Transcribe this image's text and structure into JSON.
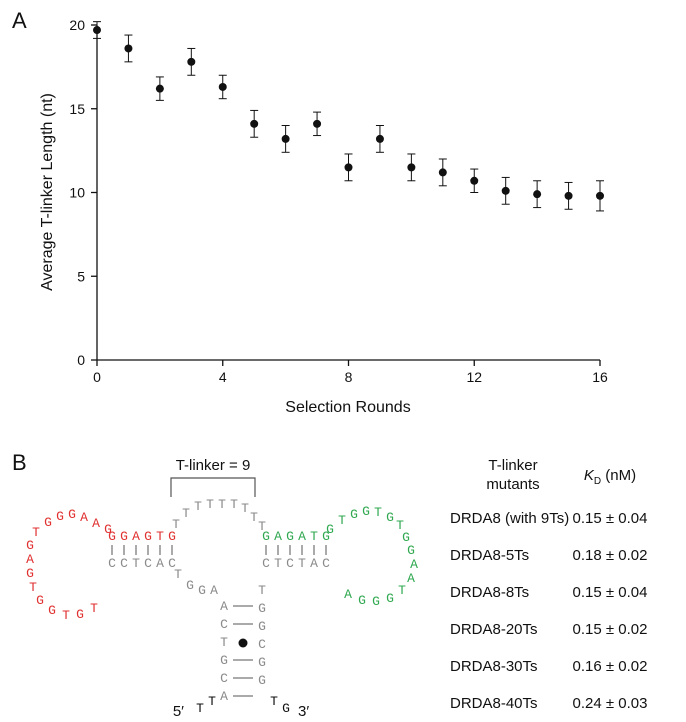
{
  "panel_a": {
    "label": "A"
  },
  "panel_b": {
    "label": "B"
  },
  "chart_data": {
    "type": "scatter",
    "xlabel": "Selection Rounds",
    "ylabel": "Average T-linker Length (nt)",
    "xlim": [
      0,
      16
    ],
    "ylim": [
      0,
      20
    ],
    "xticks": [
      0,
      4,
      8,
      12,
      16
    ],
    "yticks": [
      0,
      5,
      10,
      15,
      20
    ],
    "grid": false,
    "x": [
      0,
      1,
      2,
      3,
      4,
      5,
      6,
      7,
      8,
      9,
      10,
      11,
      12,
      13,
      14,
      15,
      16
    ],
    "y": [
      19.7,
      18.6,
      16.2,
      17.8,
      16.3,
      14.1,
      13.2,
      14.1,
      11.5,
      13.2,
      11.5,
      11.2,
      10.7,
      10.1,
      9.9,
      9.8,
      9.8
    ],
    "error": [
      0.5,
      0.8,
      0.7,
      0.8,
      0.7,
      0.8,
      0.8,
      0.7,
      0.8,
      0.8,
      0.8,
      0.8,
      0.7,
      0.8,
      0.8,
      0.8,
      0.9
    ]
  },
  "structure": {
    "t_linker_label": "T-linker = 9",
    "five_prime": "5′",
    "three_prime": "3′",
    "colors": {
      "red": "#e03030",
      "green": "#2fa84f",
      "grey": "#8a8a8a"
    },
    "red_loop": [
      "T",
      "G",
      "G",
      "G",
      "A",
      "A",
      "G",
      "G",
      "A",
      "G",
      "T",
      "G",
      "G",
      "T",
      "G",
      "T"
    ],
    "red_stem_top": [
      "G",
      "G",
      "A",
      "G",
      "T",
      "G"
    ],
    "grey_stem_bottom_left": [
      "C",
      "C",
      "T",
      "C",
      "A",
      "C"
    ],
    "t_linker": [
      "T",
      "T",
      "T",
      "T",
      "T",
      "T",
      "T",
      "T",
      "T"
    ],
    "green_stem_top": [
      "G",
      "A",
      "G",
      "A",
      "T",
      "G"
    ],
    "green_loop": [
      "G",
      "T",
      "G",
      "G",
      "T",
      "G",
      "T",
      "G",
      "G",
      "A",
      "A",
      "T",
      "G",
      "G",
      "G",
      "A"
    ],
    "grey_stem_bottom_right": [
      "C",
      "T",
      "C",
      "T",
      "A",
      "C"
    ],
    "lower_left": [
      "T",
      "G",
      "G",
      "A"
    ],
    "stem_left": [
      "A",
      "C",
      "T",
      "G",
      "C",
      "A"
    ],
    "stem_right": [
      "T",
      "G",
      "G",
      "C",
      "G",
      "G"
    ],
    "tail_left": [
      "T",
      "T"
    ],
    "tail_right": [
      "T",
      "G"
    ]
  },
  "table": {
    "header_col1": "T-linker\nmutants",
    "header_col1_line1": "T-linker",
    "header_col1_line2": "mutants",
    "header_kd_symbol": "K",
    "header_kd_sub": "D",
    "header_kd_unit": " (nM)",
    "rows": [
      {
        "name": "DRDA8 (with 9Ts)",
        "kd": "0.15 ± 0.04"
      },
      {
        "name": "DRDA8-5Ts",
        "kd": "0.18 ± 0.02"
      },
      {
        "name": "DRDA8-8Ts",
        "kd": "0.15 ± 0.04"
      },
      {
        "name": "DRDA8-20Ts",
        "kd": "0.15 ± 0.02"
      },
      {
        "name": "DRDA8-30Ts",
        "kd": "0.16 ± 0.02"
      },
      {
        "name": "DRDA8-40Ts",
        "kd": "0.24 ± 0.03"
      }
    ]
  }
}
